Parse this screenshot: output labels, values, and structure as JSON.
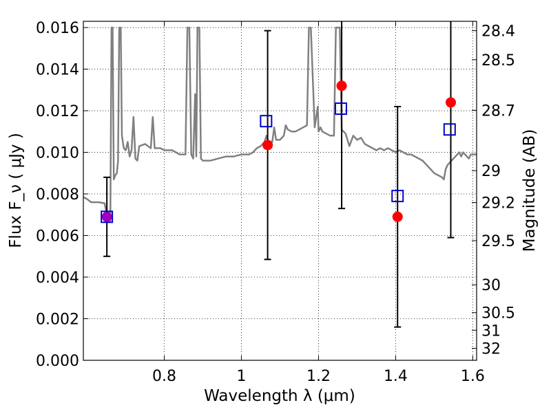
{
  "chart_data": {
    "type": "scatter",
    "xlabel": "Wavelength  λ (μm)",
    "ylabel": "Flux  F_ν  ( μJy )",
    "y2label": "Magnitude (AB)",
    "xlim": [
      0.59,
      1.61
    ],
    "ylim": [
      0.0,
      0.0163
    ],
    "grid": true,
    "x_ticks": [
      "0.8",
      "1",
      "1.2",
      "1.4",
      "1.6"
    ],
    "x_tick_values": [
      0.8,
      1.0,
      1.2,
      1.4,
      1.6
    ],
    "y_ticks": [
      "0.000",
      "0.002",
      "0.004",
      "0.006",
      "0.008",
      "0.010",
      "0.012",
      "0.014",
      "0.016"
    ],
    "y_tick_values": [
      0.0,
      0.002,
      0.004,
      0.006,
      0.008,
      0.01,
      0.012,
      0.014,
      0.016
    ],
    "y2_ticks": [
      {
        "label": "28.4",
        "mag": 28.4
      },
      {
        "label": "28.5",
        "mag": 28.5
      },
      {
        "label": "28.7",
        "mag": 28.7
      },
      {
        "label": "29",
        "mag": 29.0
      },
      {
        "label": "29.2",
        "mag": 29.2
      },
      {
        "label": "29.5",
        "mag": 29.5
      },
      {
        "label": "30",
        "mag": 30.0
      },
      {
        "label": "30.5",
        "mag": 30.5
      },
      {
        "label": "31",
        "mag": 31.0
      },
      {
        "label": "32",
        "mag": 32.0
      }
    ],
    "series": [
      {
        "type": "line",
        "color": "#808080",
        "points": [
          [
            0.59,
            0.00785
          ],
          [
            0.6,
            0.00775
          ],
          [
            0.61,
            0.0076
          ],
          [
            0.63,
            0.0076
          ],
          [
            0.645,
            0.00755
          ],
          [
            0.65,
            0.0071
          ],
          [
            0.655,
            0.0069
          ],
          [
            0.66,
            0.0067
          ],
          [
            0.663,
            0.016
          ],
          [
            0.666,
            0.016
          ],
          [
            0.669,
            0.0087
          ],
          [
            0.673,
            0.0089
          ],
          [
            0.677,
            0.009
          ],
          [
            0.68,
            0.0096
          ],
          [
            0.683,
            0.016
          ],
          [
            0.687,
            0.016
          ],
          [
            0.69,
            0.0108
          ],
          [
            0.695,
            0.0102
          ],
          [
            0.7,
            0.0101
          ],
          [
            0.705,
            0.0105
          ],
          [
            0.71,
            0.0098
          ],
          [
            0.715,
            0.0101
          ],
          [
            0.72,
            0.0117
          ],
          [
            0.725,
            0.0097
          ],
          [
            0.73,
            0.0096
          ],
          [
            0.735,
            0.0103
          ],
          [
            0.75,
            0.0104
          ],
          [
            0.765,
            0.0102
          ],
          [
            0.77,
            0.0117
          ],
          [
            0.775,
            0.0102
          ],
          [
            0.79,
            0.0102
          ],
          [
            0.8,
            0.0101
          ],
          [
            0.82,
            0.0101
          ],
          [
            0.84,
            0.0099
          ],
          [
            0.855,
            0.0099
          ],
          [
            0.86,
            0.016
          ],
          [
            0.865,
            0.016
          ],
          [
            0.87,
            0.0099
          ],
          [
            0.875,
            0.0097
          ],
          [
            0.88,
            0.0128
          ],
          [
            0.883,
            0.0098
          ],
          [
            0.886,
            0.016
          ],
          [
            0.891,
            0.016
          ],
          [
            0.895,
            0.0097
          ],
          [
            0.9,
            0.0096
          ],
          [
            0.92,
            0.0096
          ],
          [
            0.94,
            0.0097
          ],
          [
            0.96,
            0.0098
          ],
          [
            0.98,
            0.0098
          ],
          [
            1.0,
            0.0099
          ],
          [
            1.02,
            0.0099
          ],
          [
            1.03,
            0.01
          ],
          [
            1.04,
            0.0102
          ],
          [
            1.05,
            0.0103
          ],
          [
            1.055,
            0.0104
          ],
          [
            1.06,
            0.0105
          ],
          [
            1.065,
            0.0108
          ],
          [
            1.07,
            0.0105
          ],
          [
            1.08,
            0.0105
          ],
          [
            1.085,
            0.0112
          ],
          [
            1.09,
            0.0106
          ],
          [
            1.1,
            0.0106
          ],
          [
            1.11,
            0.0108
          ],
          [
            1.115,
            0.0113
          ],
          [
            1.12,
            0.0111
          ],
          [
            1.13,
            0.011
          ],
          [
            1.14,
            0.011
          ],
          [
            1.15,
            0.0111
          ],
          [
            1.16,
            0.0112
          ],
          [
            1.17,
            0.0113
          ],
          [
            1.175,
            0.016
          ],
          [
            1.18,
            0.016
          ],
          [
            1.19,
            0.0112
          ],
          [
            1.198,
            0.0122
          ],
          [
            1.2,
            0.011
          ],
          [
            1.205,
            0.0112
          ],
          [
            1.21,
            0.011
          ],
          [
            1.22,
            0.0109
          ],
          [
            1.23,
            0.0108
          ],
          [
            1.24,
            0.0108
          ],
          [
            1.245,
            0.016
          ],
          [
            1.255,
            0.016
          ],
          [
            1.26,
            0.0111
          ],
          [
            1.27,
            0.0109
          ],
          [
            1.28,
            0.0103
          ],
          [
            1.29,
            0.0108
          ],
          [
            1.3,
            0.0106
          ],
          [
            1.31,
            0.0107
          ],
          [
            1.32,
            0.0104
          ],
          [
            1.33,
            0.0103
          ],
          [
            1.34,
            0.0102
          ],
          [
            1.35,
            0.0101
          ],
          [
            1.36,
            0.0102
          ],
          [
            1.37,
            0.0101
          ],
          [
            1.38,
            0.0102
          ],
          [
            1.39,
            0.0101
          ],
          [
            1.4,
            0.01
          ],
          [
            1.41,
            0.0101
          ],
          [
            1.42,
            0.01
          ],
          [
            1.43,
            0.0099
          ],
          [
            1.44,
            0.0099
          ],
          [
            1.45,
            0.0098
          ],
          [
            1.46,
            0.0097
          ],
          [
            1.47,
            0.0096
          ],
          [
            1.48,
            0.0094
          ],
          [
            1.49,
            0.0092
          ],
          [
            1.5,
            0.009
          ],
          [
            1.51,
            0.0089
          ],
          [
            1.52,
            0.0088
          ],
          [
            1.525,
            0.0087
          ],
          [
            1.53,
            0.0092
          ],
          [
            1.535,
            0.0094
          ],
          [
            1.54,
            0.0095
          ],
          [
            1.545,
            0.0096
          ],
          [
            1.55,
            0.0097
          ],
          [
            1.555,
            0.0098
          ],
          [
            1.56,
            0.0099
          ],
          [
            1.565,
            0.01
          ],
          [
            1.57,
            0.0098
          ],
          [
            1.575,
            0.01
          ],
          [
            1.58,
            0.0099
          ],
          [
            1.59,
            0.0097
          ],
          [
            1.595,
            0.0099
          ],
          [
            1.6,
            0.0099
          ],
          [
            1.61,
            0.0099
          ]
        ]
      },
      {
        "type": "scatter",
        "marker": "circle",
        "color": "#ff0000",
        "x": [
          0.651,
          1.068,
          1.26,
          1.405,
          1.543
        ],
        "y": [
          0.0069,
          0.01035,
          0.0132,
          0.0069,
          0.0124
        ],
        "yerr": [
          0.0019,
          0.0055,
          0.0059,
          0.0053,
          0.0065
        ],
        "point_colors": [
          "#a000c0",
          "#ff0000",
          "#ff0000",
          "#ff0000",
          "#ff0000"
        ]
      },
      {
        "type": "scatter",
        "marker": "open-square",
        "color": "#0000cc",
        "x": [
          0.651,
          1.064,
          1.258,
          1.405,
          1.54
        ],
        "y": [
          0.0069,
          0.0115,
          0.0121,
          0.0079,
          0.0111
        ]
      }
    ]
  }
}
